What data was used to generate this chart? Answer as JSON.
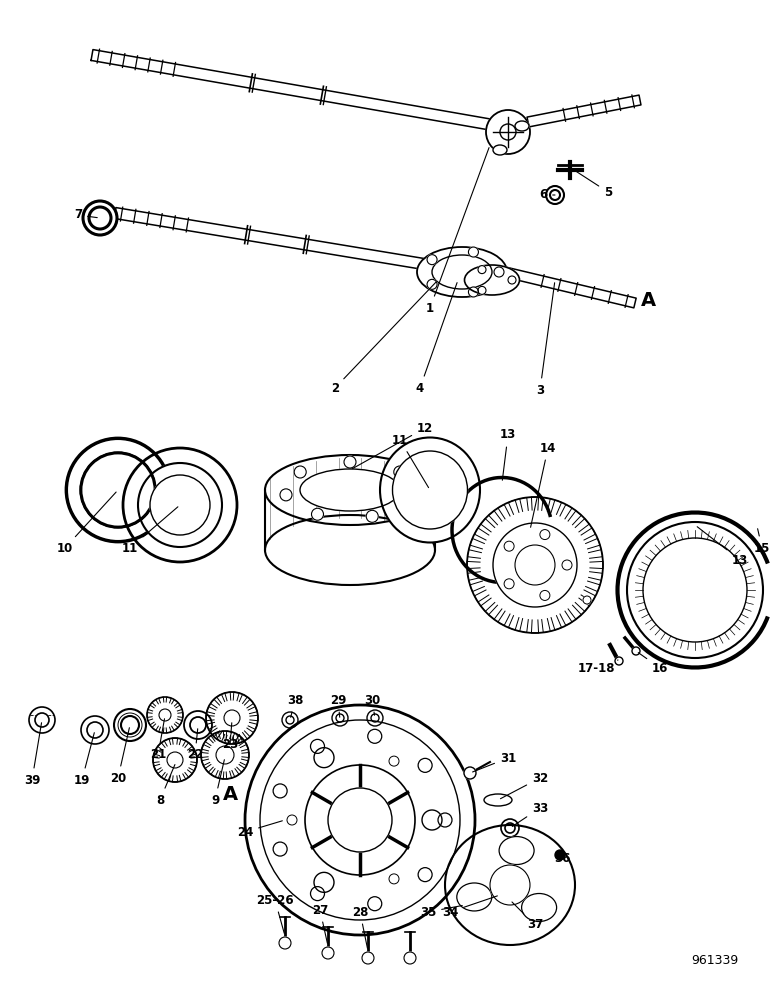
{
  "background": "#ffffff",
  "lc": "#000000",
  "catalog": "961339",
  "figsize": [
    7.72,
    10.0
  ],
  "dpi": 100
}
